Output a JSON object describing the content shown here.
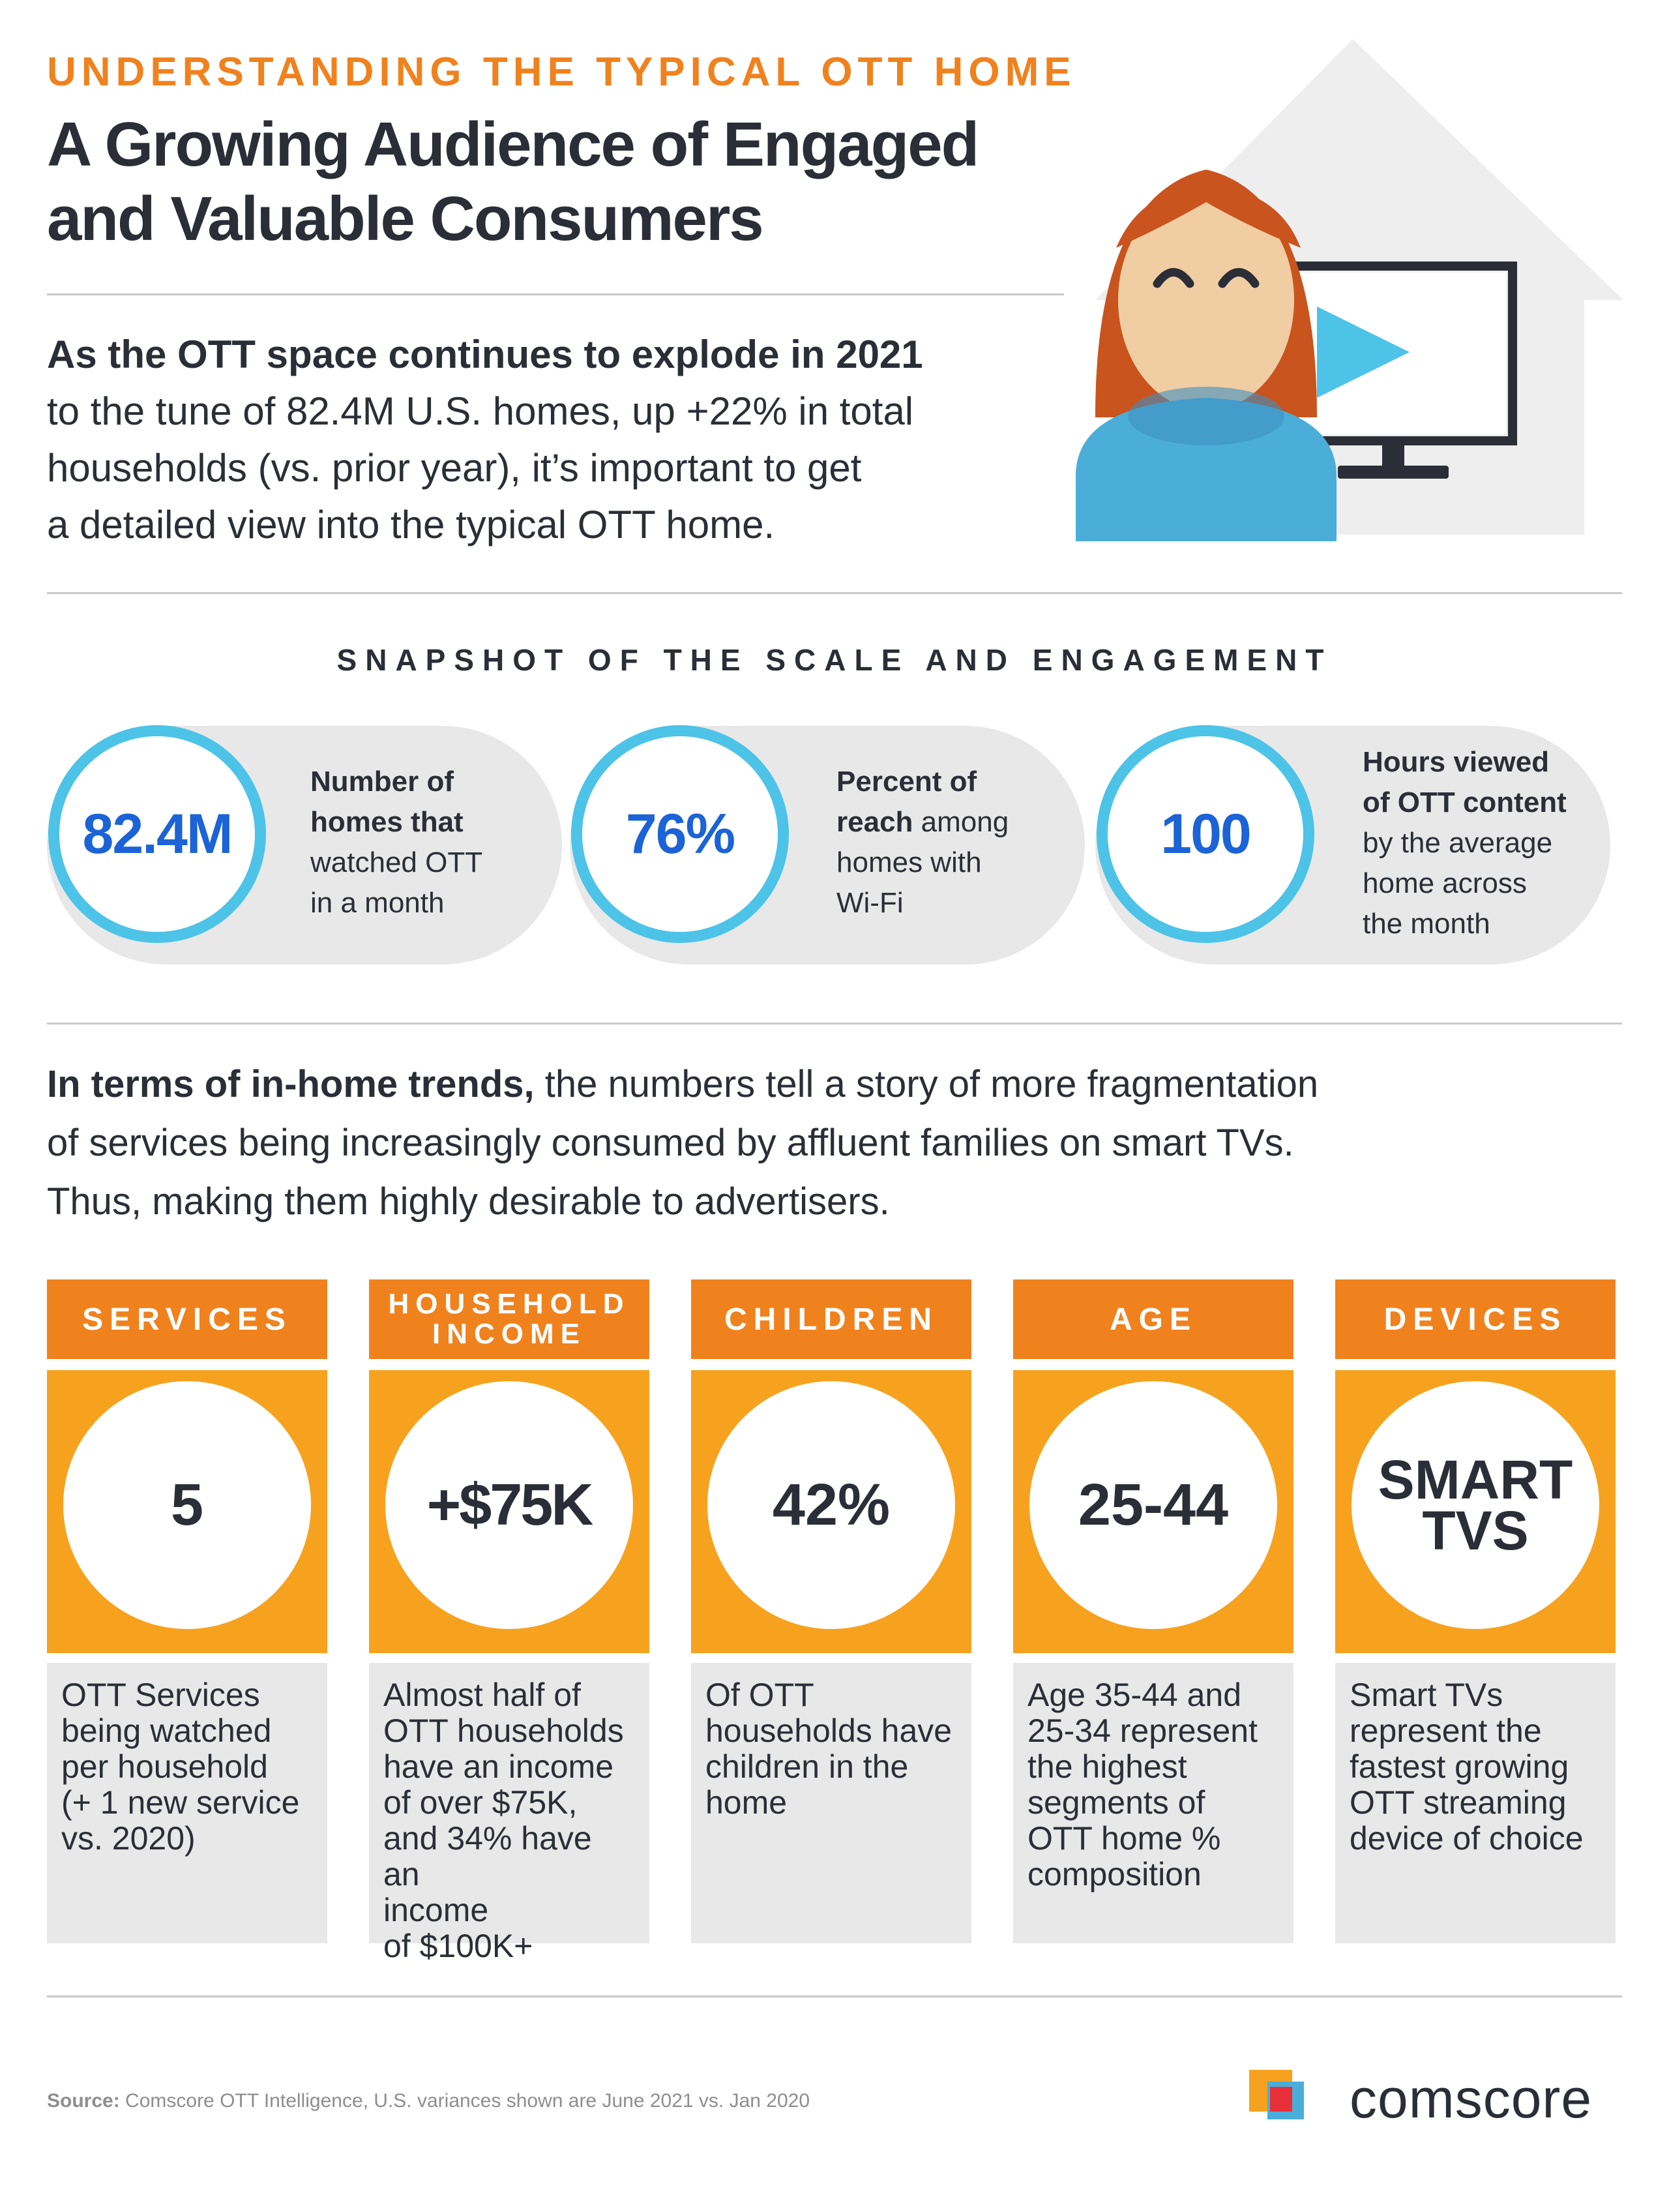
{
  "header": {
    "eyebrow": "UNDERSTANDING THE TYPICAL OTT HOME",
    "title_line1": "A Growing Audience of Engaged",
    "title_line2": "and Valuable Consumers"
  },
  "intro": {
    "bold": "As the OTT space continues to explode in 2021",
    "line2": "to the tune of 82.4M U.S. homes, up +22% in total",
    "line3": "households (vs. prior year), it’s important to get",
    "line4": "a detailed view into the typical OTT home."
  },
  "snapshot": {
    "heading": "SNAPSHOT OF THE SCALE AND ENGAGEMENT",
    "stats": [
      {
        "value": "82.4M",
        "line1": "Number of",
        "line2": "homes that",
        "line3": "watched OTT",
        "line4": "in a month"
      },
      {
        "value": "76%",
        "line1": "Percent of",
        "line2_bold": "reach",
        "line2_rest": " among",
        "line3": "homes with",
        "line4": "Wi-Fi"
      },
      {
        "value": "100",
        "line1": "Hours viewed",
        "line2": "of OTT content",
        "line3": "by the average",
        "line4": "home across",
        "line5": "the month"
      }
    ]
  },
  "trends": {
    "bold": "In terms of in-home trends,",
    "rest1": " the numbers tell a story of more fragmentation",
    "line2": "of services being increasingly consumed by affluent families on smart TVs.",
    "line3": "Thus, making them highly desirable to advertisers."
  },
  "columns": [
    {
      "heading": "SERVICES",
      "value": "5",
      "desc": [
        "OTT Services",
        "being watched",
        "per household",
        "(+ 1 new service",
        "vs. 2020)"
      ]
    },
    {
      "heading_line1": "HOUSEHOLD",
      "heading_line2": "INCOME",
      "value": "+$75K",
      "desc": [
        "Almost half of",
        "OTT households",
        "have an income",
        "of over $75K,",
        "and 34% have an",
        "income",
        "of $100K+"
      ]
    },
    {
      "heading": "CHILDREN",
      "value": "42%",
      "desc": [
        "Of OTT",
        "households have",
        "children in the",
        "home"
      ]
    },
    {
      "heading": "AGE",
      "value": "25-44",
      "desc": [
        "Age 35-44 and",
        "25-34 represent",
        "the highest",
        "segments of",
        "OTT home %",
        "composition"
      ]
    },
    {
      "heading": "DEVICES",
      "value_line1": "SMART",
      "value_line2": "TVS",
      "desc": [
        "Smart TVs",
        "represent the",
        "fastest growing",
        "OTT streaming",
        "device of choice"
      ]
    }
  ],
  "footer": {
    "source_label": "Source:",
    "source_text": " Comscore OTT Intelligence, U.S. variances shown are June 2021 vs. Jan 2020",
    "brand": "comscore"
  },
  "colors": {
    "orange": "#f0821e",
    "orange_light": "#f7a21f",
    "blue_ring": "#4dc3e8",
    "blue_number": "#1b63d6",
    "text_dark": "#2b2e36",
    "panel_gray": "#e8e8e8"
  },
  "icons": [
    "house-illustration",
    "person-illustration",
    "tv-play-icon",
    "comscore-logo-icon"
  ]
}
